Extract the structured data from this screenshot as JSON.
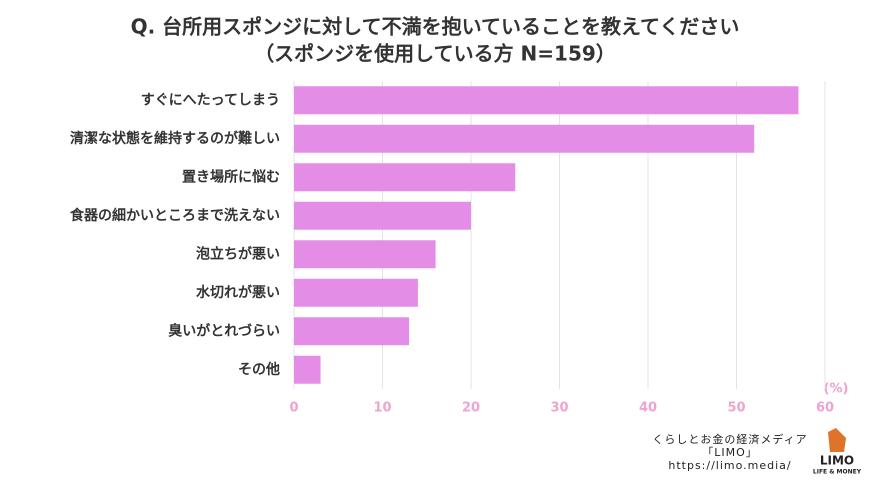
{
  "chart_data": {
    "type": "bar",
    "orientation": "horizontal",
    "title": "Q. 台所用スポンジに対して不満を抱いていることを教えてください",
    "subtitle": "（スポンジを使用している方 N=159）",
    "categories": [
      "すぐにへたってしまう",
      "清潔な状態を維持するのが難しい",
      "置き場所に悩む",
      "食器の細かいところまで洗えない",
      "泡立ちが悪い",
      "水切れが悪い",
      "臭いがとれづらい",
      "その他"
    ],
    "values": [
      57,
      52,
      25,
      20,
      16,
      14,
      13,
      3
    ],
    "color": "#e48de6",
    "xlim": [
      0,
      60
    ],
    "xticks": [
      0,
      10,
      20,
      30,
      40,
      50,
      60
    ],
    "grid": true,
    "unit_label": "(%)",
    "source_lines": [
      "くらしとお金の経済メディア",
      "「LIMO」",
      "https://limo.media/"
    ],
    "logo": {
      "name": "LIMO",
      "tagline": "LIFE & MONEY"
    }
  }
}
